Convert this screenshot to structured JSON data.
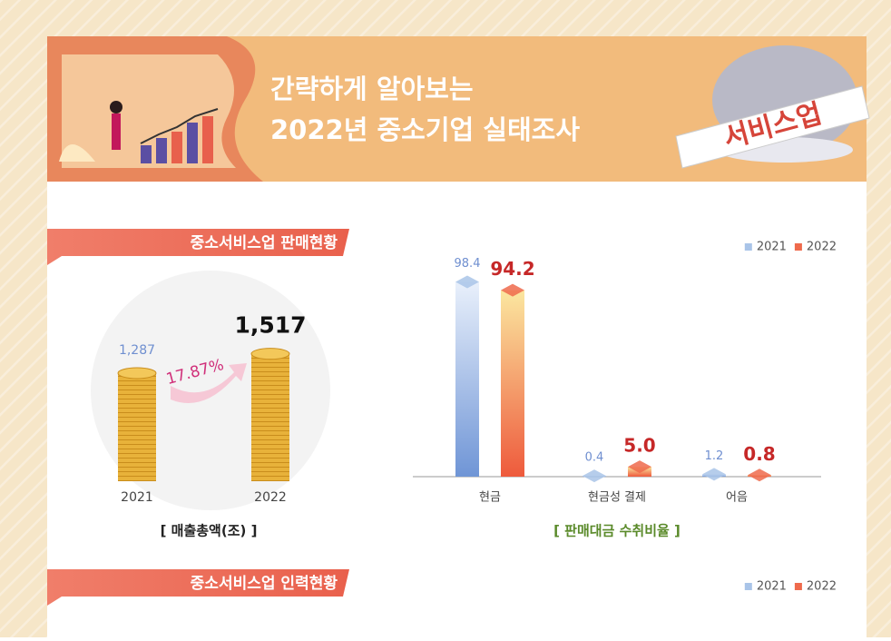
{
  "header": {
    "title_lines": [
      "간략하게 알아보는",
      "2022년 중소기업 실태조사"
    ],
    "badge": "서비스업"
  },
  "sections": [
    {
      "title": "중소서비스업 판매현황"
    },
    {
      "title": "중소서비스업 인력현황",
      "legend": [
        {
          "name": "2021",
          "color": "#a9c4e8"
        },
        {
          "name": "2022",
          "color": "#ef6a4c"
        }
      ]
    }
  ],
  "chart_data": [
    {
      "type": "coins",
      "categories": [
        "2021",
        "2022"
      ],
      "values": [
        1287,
        1517
      ],
      "value_labels": [
        "1,287",
        "1,517"
      ],
      "annotation": "17.87%",
      "caption": "[ 매출총액(조) ]",
      "color": "#e8b23a"
    },
    {
      "type": "bar",
      "categories": [
        "현금",
        "현금성 결제",
        "어음"
      ],
      "series": [
        {
          "name": "2021",
          "color": "#a9c4e8",
          "values": [
            98.4,
            0.4,
            1.2
          ]
        },
        {
          "name": "2022",
          "color": "#ef6a4c",
          "values": [
            94.2,
            5.0,
            0.8
          ],
          "value_labels": [
            "94.2",
            "5.0",
            "0.8"
          ]
        }
      ],
      "caption": "[ 판매대금 수취비율 ]",
      "legend": "top-right"
    }
  ]
}
